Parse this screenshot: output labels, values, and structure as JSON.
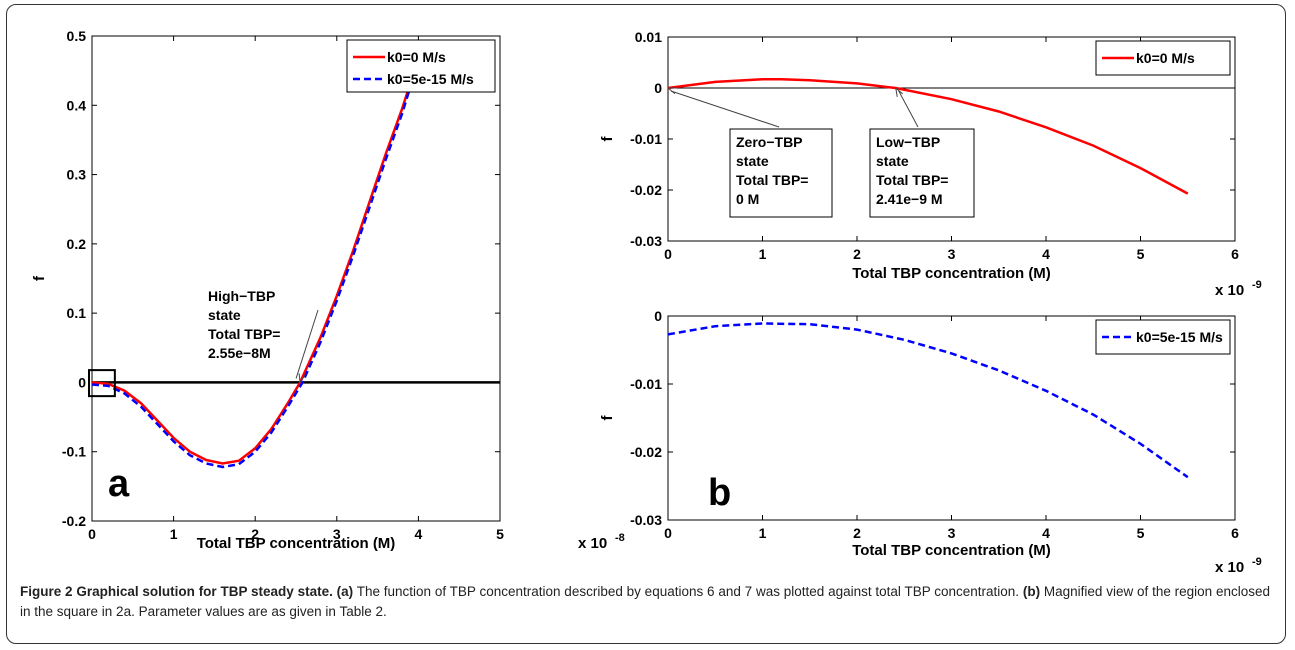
{
  "chart_data": [
    {
      "panel_label": "a",
      "type": "line",
      "xlabel": "Total TBP concentration (M)",
      "ylabel": "f",
      "x_exponent_label": "x 10",
      "x_exponent": "-8",
      "xlim": [
        0,
        5
      ],
      "ylim": [
        -0.2,
        0.5
      ],
      "xticks": [
        "0",
        "1",
        "2",
        "3",
        "4",
        "5"
      ],
      "yticks": [
        "-0.2",
        "-0.1",
        "0",
        "0.1",
        "0.2",
        "0.3",
        "0.4",
        "0.5"
      ],
      "legend_position": "top-right",
      "series": [
        {
          "name": "k0=0 M/s",
          "color": "#ff0000",
          "style": "solid",
          "x": [
            0,
            0.2,
            0.4,
            0.6,
            0.8,
            1.0,
            1.2,
            1.4,
            1.6,
            1.8,
            2.0,
            2.2,
            2.4,
            2.55,
            2.8,
            3.0,
            3.2,
            3.4,
            3.6,
            3.8,
            3.95
          ],
          "y": [
            0,
            -0.002,
            -0.012,
            -0.03,
            -0.055,
            -0.08,
            -0.1,
            -0.112,
            -0.117,
            -0.113,
            -0.095,
            -0.067,
            -0.03,
            0,
            0.065,
            0.125,
            0.19,
            0.26,
            0.33,
            0.395,
            0.45
          ]
        },
        {
          "name": "k0=5e-15 M/s",
          "color": "#0000ff",
          "style": "dashed",
          "x": [
            0,
            0.2,
            0.4,
            0.6,
            0.8,
            1.0,
            1.2,
            1.4,
            1.6,
            1.8,
            2.0,
            2.2,
            2.4,
            2.58,
            2.8,
            3.0,
            3.2,
            3.4,
            3.6,
            3.8,
            3.95
          ],
          "y": [
            -0.003,
            -0.005,
            -0.016,
            -0.035,
            -0.06,
            -0.085,
            -0.105,
            -0.117,
            -0.122,
            -0.118,
            -0.1,
            -0.072,
            -0.035,
            0,
            0.058,
            0.118,
            0.183,
            0.252,
            0.322,
            0.388,
            0.445
          ]
        }
      ],
      "hlines": [
        0
      ],
      "annotation": {
        "lines": [
          "High−TBP",
          "state",
          "Total TBP=",
          "2.55e−8M"
        ],
        "arrow_to": [
          2.55,
          0
        ]
      },
      "zoom_box": {
        "x": [
          0,
          0.28
        ],
        "y": [
          -0.014,
          0.012
        ]
      }
    },
    {
      "panel_label": "",
      "type": "line",
      "xlabel": "Total TBP concentration (M)",
      "ylabel": "f",
      "x_exponent_label": "x 10",
      "x_exponent": "-9",
      "xlim": [
        0,
        6
      ],
      "ylim": [
        -0.03,
        0.01
      ],
      "xticks": [
        "0",
        "1",
        "2",
        "3",
        "4",
        "5",
        "6"
      ],
      "yticks": [
        "-0.03",
        "-0.02",
        "-0.01",
        "0",
        "0.01"
      ],
      "legend_position": "top-right",
      "series": [
        {
          "name": "k0=0 M/s",
          "color": "#ff0000",
          "style": "solid",
          "x": [
            0,
            0.5,
            1.0,
            1.2,
            1.5,
            2.0,
            2.41,
            3.0,
            3.5,
            4.0,
            4.5,
            5.0,
            5.5
          ],
          "y": [
            0,
            0.0012,
            0.0017,
            0.0017,
            0.0015,
            0.0009,
            0,
            -0.0022,
            -0.0046,
            -0.0077,
            -0.0113,
            -0.0157,
            -0.0207
          ]
        }
      ],
      "hlines": [
        0
      ],
      "annotations": [
        {
          "lines": [
            "Zero−TBP",
            "state",
            "Total TBP=",
            "0 M"
          ],
          "arrow_to": [
            0,
            0
          ]
        },
        {
          "lines": [
            "Low−TBP",
            "state",
            "Total TBP=",
            "2.41e−9 M"
          ],
          "arrow_to": [
            2.41,
            0
          ]
        }
      ]
    },
    {
      "panel_label": "b",
      "type": "line",
      "xlabel": "Total TBP concentration (M)",
      "ylabel": "f",
      "x_exponent_label": "x 10",
      "x_exponent": "-9",
      "xlim": [
        0,
        6
      ],
      "ylim": [
        -0.03,
        0
      ],
      "xticks": [
        "0",
        "1",
        "2",
        "3",
        "4",
        "5",
        "6"
      ],
      "yticks": [
        "-0.03",
        "-0.02",
        "-0.01",
        "0"
      ],
      "legend_position": "top-right",
      "series": [
        {
          "name": "k0=5e-15 M/s",
          "color": "#0000ff",
          "style": "dashed",
          "x": [
            0,
            0.5,
            1.0,
            1.5,
            2.0,
            2.5,
            3.0,
            3.5,
            4.0,
            4.5,
            5.0,
            5.5
          ],
          "y": [
            -0.0027,
            -0.0015,
            -0.0011,
            -0.0012,
            -0.002,
            -0.0035,
            -0.0055,
            -0.008,
            -0.011,
            -0.0145,
            -0.0188,
            -0.0237
          ]
        }
      ]
    }
  ],
  "caption": {
    "title": "Figure 2 Graphical solution for TBP steady state",
    "label_a": "(a)",
    "text_a": " The function of TBP concentration described by equations 6 and 7 was plotted against total TBP concentration. ",
    "label_b": "(b)",
    "text_b": " Magnified view of the region enclosed in the square in 2a. Parameter values are as given in Table 2."
  }
}
